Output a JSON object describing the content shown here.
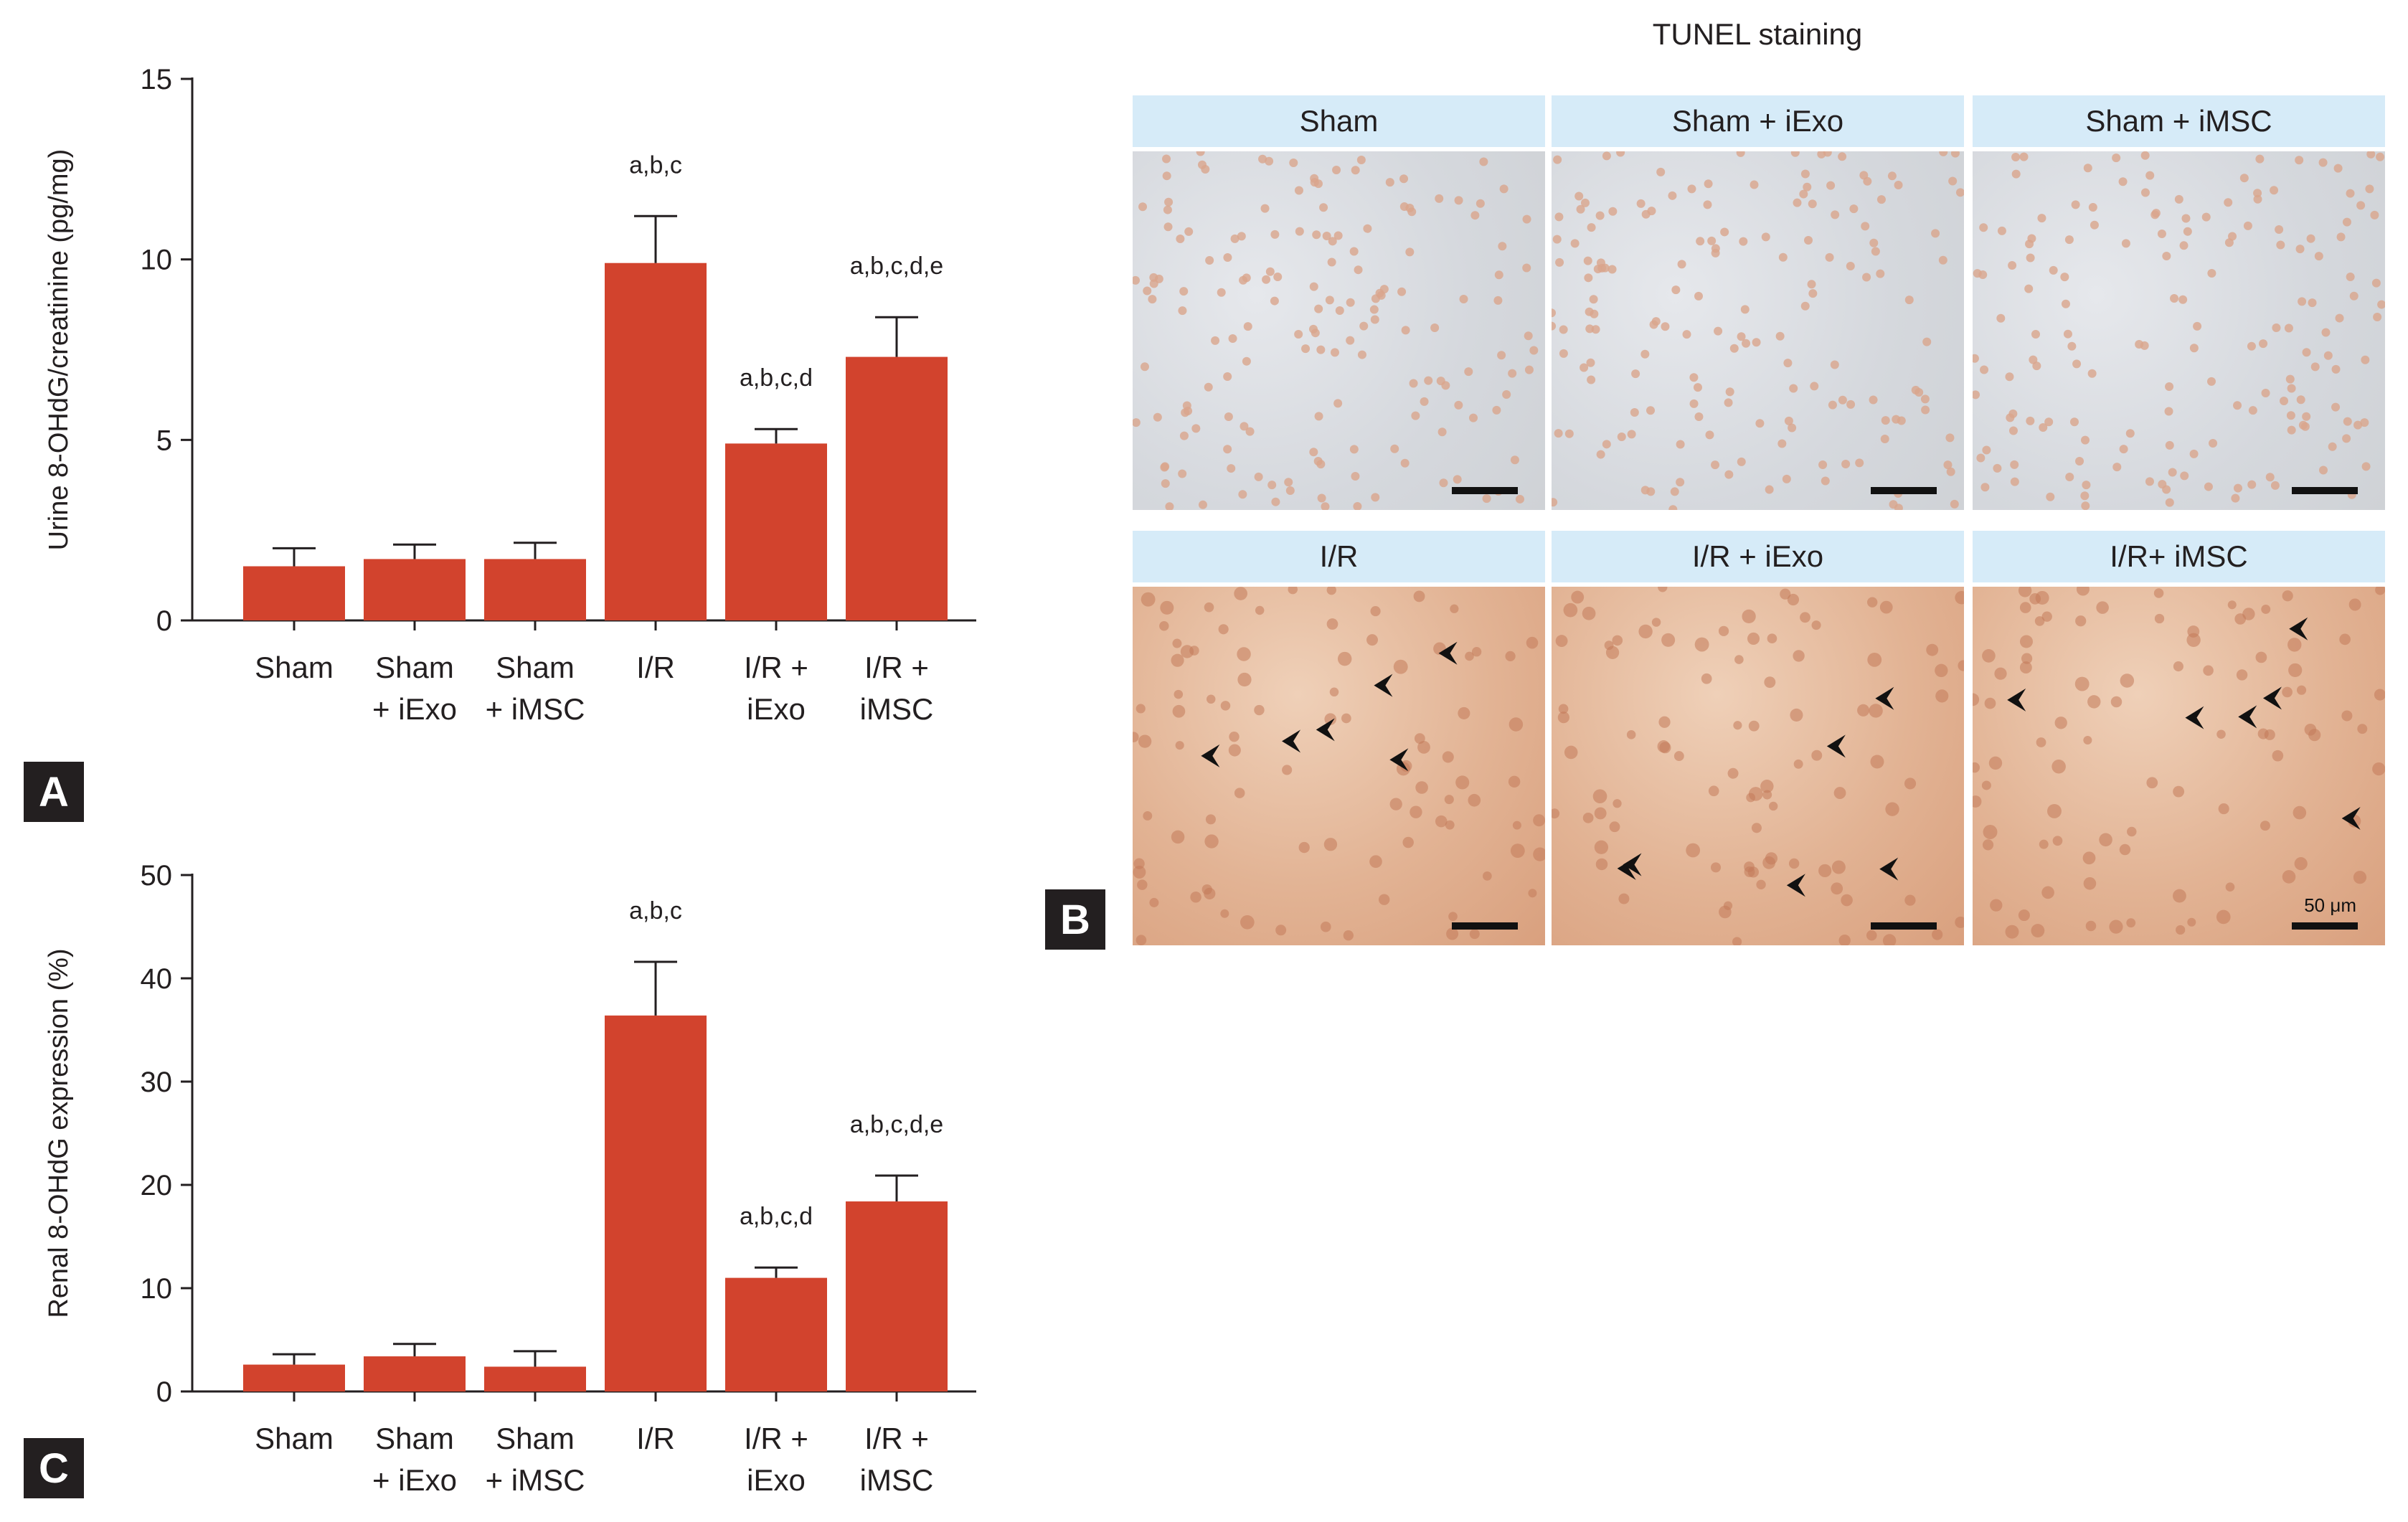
{
  "chart_data": [
    {
      "panel": "A",
      "type": "bar",
      "ylabel": "Urine 8-OHdG/creatinine (pg/mg)",
      "ylim": [
        0,
        15
      ],
      "yticks": [
        0,
        5,
        10,
        15
      ],
      "categories": [
        [
          "Sham"
        ],
        [
          "Sham",
          "+ iExo"
        ],
        [
          "Sham",
          "+ iMSC"
        ],
        [
          "I/R"
        ],
        [
          "I/R +",
          "iExo"
        ],
        [
          "I/R +",
          "iMSC"
        ]
      ],
      "values": [
        1.5,
        1.7,
        1.7,
        9.9,
        4.9,
        7.3
      ],
      "errors": [
        0.5,
        0.4,
        0.45,
        1.3,
        0.4,
        1.1
      ],
      "annotations": [
        "",
        "",
        "",
        "a,b,c",
        "a,b,c,d",
        "a,b,c,d,e"
      ],
      "bar_color": "#d2432d"
    },
    {
      "panel": "C",
      "type": "bar",
      "ylabel": "Renal 8-OHdG expression (%)",
      "ylim": [
        0,
        50
      ],
      "yticks": [
        0,
        10,
        20,
        30,
        40,
        50
      ],
      "categories": [
        [
          "Sham"
        ],
        [
          "Sham",
          "+ iExo"
        ],
        [
          "Sham",
          "+ iMSC"
        ],
        [
          "I/R"
        ],
        [
          "I/R +",
          "iExo"
        ],
        [
          "I/R +",
          "iMSC"
        ]
      ],
      "values": [
        2.6,
        3.4,
        2.4,
        36.4,
        11.0,
        18.4
      ],
      "errors": [
        1.0,
        1.2,
        1.5,
        5.2,
        1.0,
        2.5
      ],
      "annotations": [
        "",
        "",
        "",
        "a,b,c",
        "a,b,c,d",
        "a,b,c,d,e"
      ],
      "bar_color": "#d2432d"
    }
  ],
  "panel_labels": {
    "a": "A",
    "b": "B",
    "c": "C"
  },
  "micrograph": {
    "title": "TUNEL staining",
    "scale_label": "50 μm",
    "panels": [
      {
        "label": "Sham",
        "tissue": "sham"
      },
      {
        "label": "Sham + iExo",
        "tissue": "sham"
      },
      {
        "label": "Sham + iMSC",
        "tissue": "sham"
      },
      {
        "label": "I/R",
        "tissue": "ir"
      },
      {
        "label": "I/R + iExo",
        "tissue": "ir"
      },
      {
        "label": "I/R+ iMSC",
        "tissue": "ir"
      }
    ]
  }
}
